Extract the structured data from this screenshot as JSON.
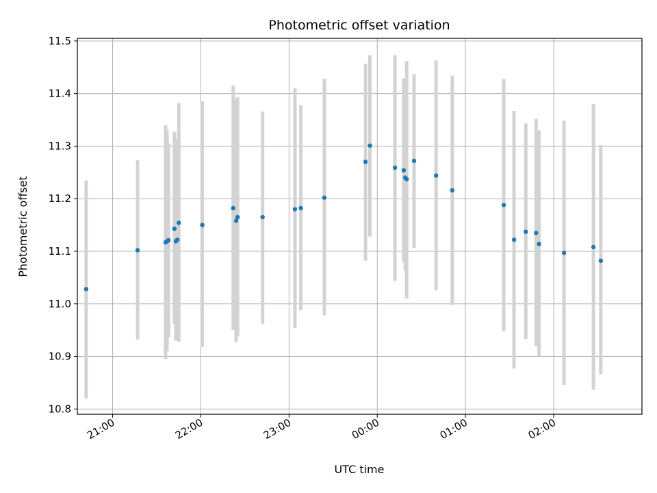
{
  "chart_data": {
    "type": "scatter",
    "title": "Photometric offset variation",
    "xlabel": "UTC time",
    "ylabel": "Photometric offset",
    "grid": true,
    "x_unit": "UTC time (HH:MM); values after midnight are on the following day",
    "xlim": [
      "20:36",
      "03:00"
    ],
    "ylim": [
      10.79,
      11.505
    ],
    "x_ticks": [
      "21:00",
      "22:00",
      "23:00",
      "00:00",
      "01:00",
      "02:00"
    ],
    "y_ticks": [
      "10.8",
      "10.9",
      "11.0",
      "11.1",
      "11.2",
      "11.3",
      "11.4",
      "11.5"
    ],
    "colors": {
      "points": "#1f77b4",
      "errorbars": "#d3d3d3",
      "grid": "#b0b0b0"
    },
    "points": [
      {
        "x": "20:42",
        "y": 11.028,
        "yerr_low": 10.82,
        "yerr_high": 11.235
      },
      {
        "x": "21:17",
        "y": 11.102,
        "yerr_low": 10.932,
        "yerr_high": 11.273
      },
      {
        "x": "21:36",
        "y": 11.117,
        "yerr_low": 10.895,
        "yerr_high": 11.34
      },
      {
        "x": "21:37",
        "y": 11.119,
        "yerr_low": 10.91,
        "yerr_high": 11.33
      },
      {
        "x": "21:38",
        "y": 11.121,
        "yerr_low": 10.937,
        "yerr_high": 11.305
      },
      {
        "x": "21:42",
        "y": 11.143,
        "yerr_low": 10.962,
        "yerr_high": 11.327
      },
      {
        "x": "21:43",
        "y": 11.119,
        "yerr_low": 10.93,
        "yerr_high": 11.31
      },
      {
        "x": "21:44",
        "y": 11.122,
        "yerr_low": 10.935,
        "yerr_high": 11.313
      },
      {
        "x": "21:45",
        "y": 11.154,
        "yerr_low": 10.928,
        "yerr_high": 11.382
      },
      {
        "x": "22:01",
        "y": 11.15,
        "yerr_low": 10.918,
        "yerr_high": 11.385
      },
      {
        "x": "22:22",
        "y": 11.182,
        "yerr_low": 10.95,
        "yerr_high": 11.415
      },
      {
        "x": "22:24",
        "y": 11.158,
        "yerr_low": 10.927,
        "yerr_high": 11.389
      },
      {
        "x": "22:25",
        "y": 11.165,
        "yerr_low": 10.938,
        "yerr_high": 11.393
      },
      {
        "x": "22:42",
        "y": 11.165,
        "yerr_low": 10.962,
        "yerr_high": 11.366
      },
      {
        "x": "23:04",
        "y": 11.18,
        "yerr_low": 10.954,
        "yerr_high": 11.41
      },
      {
        "x": "23:08",
        "y": 11.182,
        "yerr_low": 10.988,
        "yerr_high": 11.378
      },
      {
        "x": "23:24",
        "y": 11.202,
        "yerr_low": 10.978,
        "yerr_high": 11.428
      },
      {
        "x": "23:52",
        "y": 11.27,
        "yerr_low": 11.082,
        "yerr_high": 11.457
      },
      {
        "x": "23:55",
        "y": 11.301,
        "yerr_low": 11.128,
        "yerr_high": 11.473
      },
      {
        "x": "00:12",
        "y": 11.259,
        "yerr_low": 11.044,
        "yerr_high": 11.473
      },
      {
        "x": "00:18",
        "y": 11.254,
        "yerr_low": 11.08,
        "yerr_high": 11.429
      },
      {
        "x": "00:19",
        "y": 11.24,
        "yerr_low": 11.063,
        "yerr_high": 11.415
      },
      {
        "x": "00:20",
        "y": 11.237,
        "yerr_low": 11.01,
        "yerr_high": 11.462
      },
      {
        "x": "00:25",
        "y": 11.272,
        "yerr_low": 11.106,
        "yerr_high": 11.437
      },
      {
        "x": "00:40",
        "y": 11.244,
        "yerr_low": 11.026,
        "yerr_high": 11.463
      },
      {
        "x": "00:51",
        "y": 11.216,
        "yerr_low": 10.998,
        "yerr_high": 11.434
      },
      {
        "x": "01:26",
        "y": 11.188,
        "yerr_low": 10.948,
        "yerr_high": 11.428
      },
      {
        "x": "01:33",
        "y": 11.122,
        "yerr_low": 10.877,
        "yerr_high": 11.367
      },
      {
        "x": "01:41",
        "y": 11.137,
        "yerr_low": 10.933,
        "yerr_high": 11.343
      },
      {
        "x": "01:48",
        "y": 11.135,
        "yerr_low": 10.92,
        "yerr_high": 11.352
      },
      {
        "x": "01:50",
        "y": 11.114,
        "yerr_low": 10.9,
        "yerr_high": 11.33
      },
      {
        "x": "02:07",
        "y": 11.097,
        "yerr_low": 10.846,
        "yerr_high": 11.348
      },
      {
        "x": "02:27",
        "y": 11.108,
        "yerr_low": 10.837,
        "yerr_high": 11.38
      },
      {
        "x": "02:32",
        "y": 11.082,
        "yerr_low": 10.866,
        "yerr_high": 11.302
      }
    ]
  }
}
